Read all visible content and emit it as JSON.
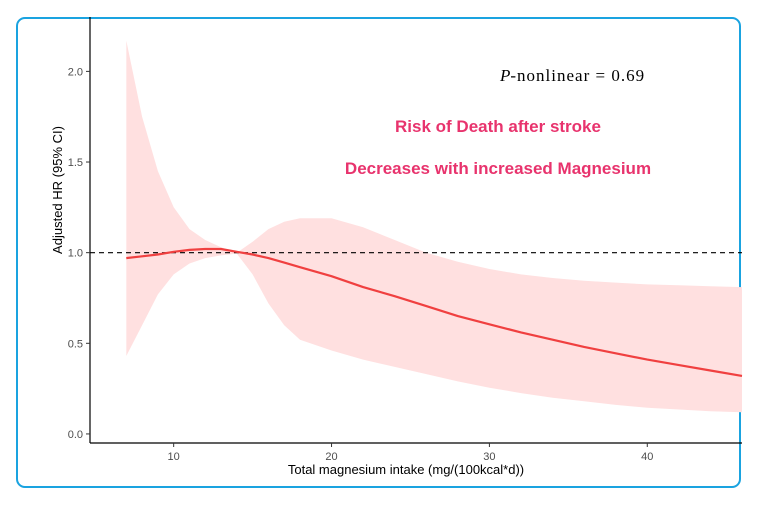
{
  "chart_data": {
    "type": "line",
    "title": "",
    "xlabel": "Total magnesium intake (mg/(100kcal*d))",
    "ylabel": "Adjusted HR (95% CI)",
    "xlim": [
      4.7,
      46
    ],
    "ylim": [
      -0.05,
      2.3
    ],
    "xticks": [
      10,
      20,
      30,
      40
    ],
    "yticks": [
      0.0,
      0.5,
      1.0,
      1.5,
      2.0
    ],
    "xtick_labels": [
      "10",
      "20",
      "30",
      "40"
    ],
    "ytick_labels": [
      "0.0",
      "0.5",
      "1.0",
      "1.5",
      "2.0"
    ],
    "reference_line": 1.0,
    "series": [
      {
        "name": "Adjusted HR",
        "color": "#f04040",
        "x": [
          7,
          8,
          9,
          10,
          11,
          12,
          13,
          14,
          15,
          16,
          17,
          18,
          20,
          22,
          24,
          26,
          28,
          30,
          32,
          34,
          36,
          38,
          40,
          42,
          44,
          46
        ],
        "y": [
          0.97,
          0.98,
          0.99,
          1.005,
          1.015,
          1.02,
          1.02,
          1.005,
          0.99,
          0.97,
          0.945,
          0.92,
          0.87,
          0.81,
          0.76,
          0.705,
          0.65,
          0.605,
          0.56,
          0.52,
          0.48,
          0.445,
          0.41,
          0.38,
          0.35,
          0.32
        ],
        "ci_lower": [
          0.43,
          0.6,
          0.77,
          0.88,
          0.94,
          0.97,
          0.985,
          0.995,
          0.88,
          0.72,
          0.6,
          0.52,
          0.46,
          0.41,
          0.37,
          0.33,
          0.29,
          0.255,
          0.225,
          0.2,
          0.18,
          0.16,
          0.145,
          0.135,
          0.125,
          0.12
        ],
        "ci_upper": [
          2.17,
          1.75,
          1.45,
          1.25,
          1.13,
          1.07,
          1.03,
          1.0,
          1.06,
          1.13,
          1.17,
          1.19,
          1.19,
          1.14,
          1.07,
          1.0,
          0.95,
          0.91,
          0.88,
          0.86,
          0.845,
          0.835,
          0.825,
          0.82,
          0.815,
          0.81
        ]
      }
    ],
    "band_color": "#ffe0e0",
    "annotations": {
      "p_italic": "P",
      "p_text": "-nonlinear = 0.69",
      "line1": "Risk of Death after stroke",
      "line2": "Decreases with increased Magnesium"
    }
  },
  "colors": {
    "frame": "#1aa3e0",
    "annotation": "#e8336d",
    "line": "#f04040",
    "band": "#ffe0e0"
  }
}
